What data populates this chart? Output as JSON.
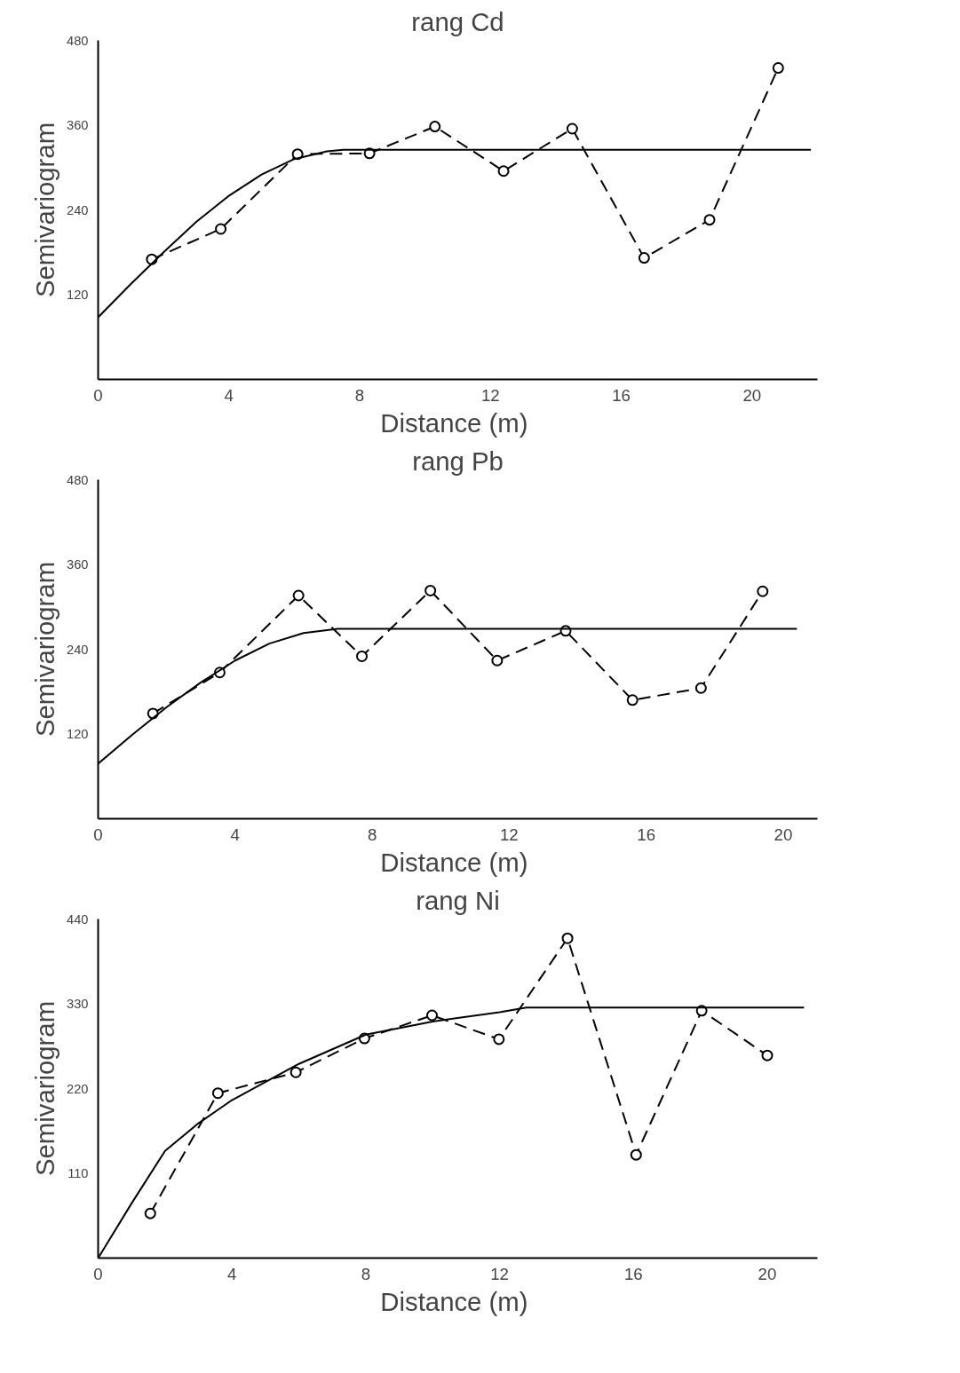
{
  "chart_data": [
    {
      "type": "line",
      "title": "rang Cd",
      "xlabel": "Distance  (m)",
      "ylabel": "Semivariogram",
      "xlim": [
        0,
        22
      ],
      "ylim": [
        0,
        480
      ],
      "xticks": [
        0,
        4,
        8,
        12,
        16,
        20
      ],
      "yticks": [
        120,
        240,
        360,
        480
      ],
      "grid": false,
      "series": [
        {
          "color": "#000000",
          "marker": "circle",
          "line_style": "dashed",
          "x": [
            1.64,
            3.75,
            6.1,
            8.3,
            10.3,
            12.4,
            14.5,
            16.7,
            18.7,
            20.8
          ],
          "values": [
            170,
            213,
            319,
            320,
            358,
            295,
            355,
            172,
            226,
            441
          ]
        },
        {
          "color": "#000000",
          "marker": "none",
          "line_style": "solid",
          "x": [
            0,
            1,
            2,
            3,
            4,
            5,
            6,
            7,
            7.5,
            21.8
          ],
          "values": [
            88,
            135,
            180,
            223,
            260,
            290,
            312,
            323,
            325,
            325
          ]
        }
      ]
    },
    {
      "type": "line",
      "title": "rang Pb",
      "xlabel": "Distance  (m)",
      "ylabel": "Semivariogram",
      "xlim": [
        0,
        21
      ],
      "ylim": [
        0,
        480
      ],
      "xticks": [
        0,
        4,
        8,
        12,
        16,
        20
      ],
      "yticks": [
        120,
        240,
        360,
        480
      ],
      "grid": false,
      "series": [
        {
          "color": "#000000",
          "marker": "circle",
          "line_style": "dashed",
          "x": [
            1.6,
            3.55,
            5.85,
            7.7,
            9.7,
            11.65,
            13.65,
            15.6,
            17.6,
            19.4
          ],
          "values": [
            149,
            207,
            316,
            230,
            323,
            224,
            266,
            168,
            185,
            322
          ]
        },
        {
          "color": "#000000",
          "marker": "none",
          "line_style": "solid",
          "x": [
            0,
            1,
            2,
            3,
            4,
            5,
            6,
            7,
            20.4
          ],
          "values": [
            78,
            119,
            158,
            193,
            224,
            248,
            263,
            269,
            269
          ]
        }
      ]
    },
    {
      "type": "line",
      "title": "rang Ni",
      "xlabel": "Distance  (m)",
      "ylabel": "Semivariogram",
      "xlim": [
        0,
        21.5
      ],
      "ylim": [
        0,
        440
      ],
      "xticks": [
        0,
        4,
        8,
        12,
        16,
        20
      ],
      "yticks": [
        110,
        220,
        330,
        440
      ],
      "grid": false,
      "series": [
        {
          "color": "#000000",
          "marker": "circle",
          "line_style": "dashed",
          "x": [
            1.56,
            3.58,
            5.91,
            7.96,
            9.98,
            11.98,
            14.03,
            16.08,
            18.04,
            20.0
          ],
          "values": [
            58,
            214,
            241,
            285,
            315,
            284,
            415,
            134,
            321,
            263
          ]
        },
        {
          "color": "#000000",
          "marker": "none",
          "line_style": "solid",
          "x": [
            0,
            1,
            2,
            3,
            4,
            6,
            8,
            10,
            12,
            12.8,
            21.1
          ],
          "values": [
            0,
            71,
            139,
            175,
            205,
            252,
            290,
            307,
            319,
            325,
            325
          ]
        }
      ]
    }
  ]
}
